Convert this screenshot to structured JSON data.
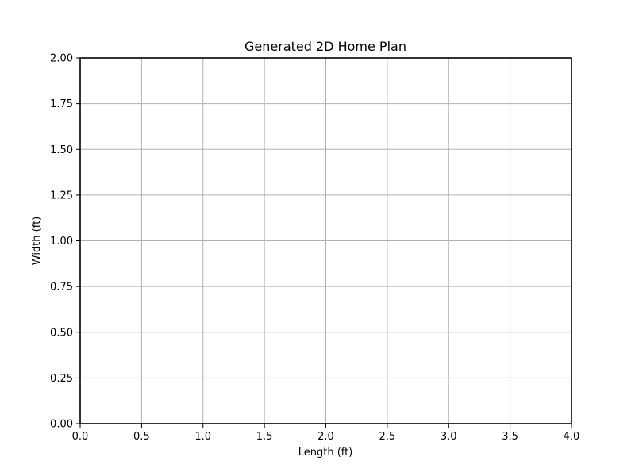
{
  "chart_data": {
    "type": "line",
    "title": "Generated 2D Home Plan",
    "xlabel": "Length (ft)",
    "ylabel": "Width (ft)",
    "xlim": [
      0,
      4
    ],
    "ylim": [
      0,
      2
    ],
    "xticks": [
      0.0,
      0.5,
      1.0,
      1.5,
      2.0,
      2.5,
      3.0,
      3.5,
      4.0
    ],
    "xtick_labels": [
      "0.0",
      "0.5",
      "1.0",
      "1.5",
      "2.0",
      "2.5",
      "3.0",
      "3.5",
      "4.0"
    ],
    "yticks": [
      0.0,
      0.25,
      0.5,
      0.75,
      1.0,
      1.25,
      1.5,
      1.75,
      2.0
    ],
    "ytick_labels": [
      "0.00",
      "0.25",
      "0.50",
      "0.75",
      "1.00",
      "1.25",
      "1.50",
      "1.75",
      "2.00"
    ],
    "grid": true,
    "series": []
  },
  "colors": {
    "grid": "#b0b0b0",
    "axes": "#000000",
    "background": "#ffffff"
  }
}
